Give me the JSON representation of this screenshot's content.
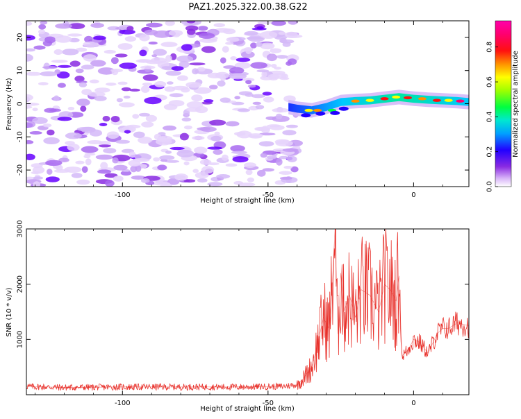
{
  "title": "PAZ1.2025.322.00.38.G22",
  "chart_data": [
    {
      "type": "heatmap",
      "xlabel": "Height of straight line (km)",
      "ylabel": "Frequency (Hz)",
      "xlim": [
        -133,
        19
      ],
      "ylim": [
        -25,
        25
      ],
      "xticks": [
        -100,
        -50,
        0
      ],
      "yticks": [
        -20,
        -10,
        0,
        10,
        20
      ],
      "colorbar": {
        "label": "Normalized spectral amplitude",
        "range": [
          0,
          0.95
        ],
        "ticks": [
          0.0,
          0.2,
          0.4,
          0.6,
          0.8
        ]
      },
      "regions": [
        {
          "x": [
            -133,
            -40
          ],
          "y": [
            -25,
            25
          ],
          "amplitude": 0.07
        },
        {
          "x": [
            -43,
            19
          ],
          "y": [
            -6,
            4
          ],
          "amplitude": 0.7
        }
      ]
    },
    {
      "type": "line",
      "xlabel": "Height of straight line (km)",
      "ylabel": "SNR (10 * v/v)",
      "xlim": [
        -133,
        19
      ],
      "ylim": [
        0,
        3000
      ],
      "xticks": [
        -100,
        -50,
        0
      ],
      "yticks": [
        1000,
        2000,
        3000
      ],
      "series_color": "#e8312b",
      "x": [
        -133,
        -120,
        -100,
        -80,
        -60,
        -45,
        -40,
        -38,
        -35,
        -33,
        -31,
        -29,
        -28,
        -27,
        -26,
        -25,
        -24,
        -22,
        -20,
        -18,
        -15,
        -12,
        -10,
        -8,
        -6,
        -5,
        -4,
        -2,
        0,
        2,
        5,
        8,
        10,
        12,
        15,
        19
      ],
      "y": [
        150,
        130,
        140,
        140,
        140,
        150,
        180,
        280,
        500,
        900,
        1400,
        1200,
        1900,
        3000,
        1100,
        2200,
        1500,
        1800,
        1400,
        1900,
        1800,
        1500,
        2000,
        1900,
        1700,
        2150,
        700,
        800,
        1000,
        950,
        750,
        1100,
        1200,
        1200,
        1300,
        1250
      ]
    }
  ]
}
